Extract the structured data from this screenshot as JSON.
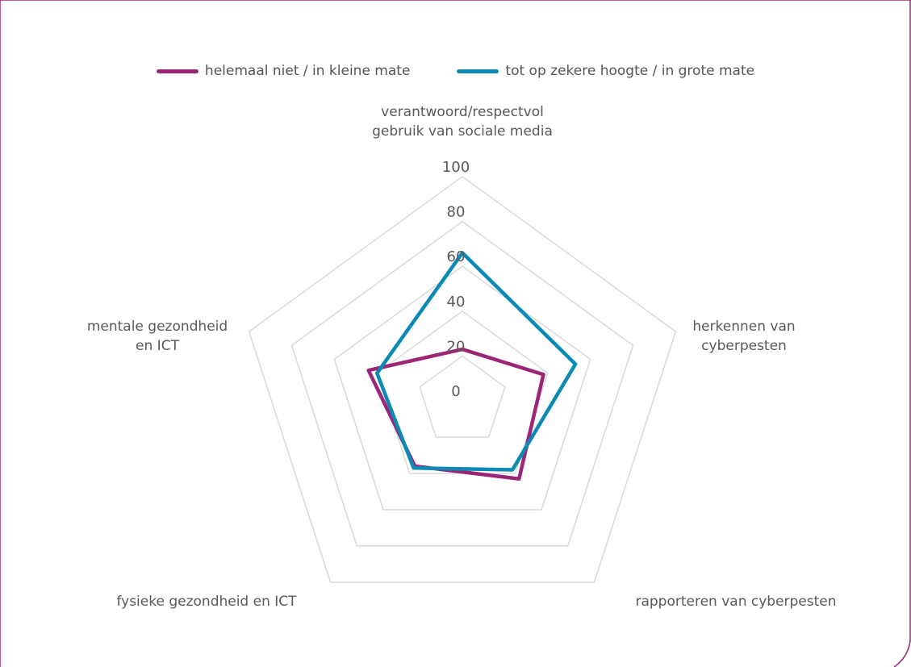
{
  "colors": {
    "frame": "#9b2677",
    "grid": "#d9d9d9",
    "text": "#595959"
  },
  "chart_data": {
    "type": "radar",
    "title": "",
    "categories": [
      [
        "verantwoord/respectvol",
        "gebruik van sociale media"
      ],
      [
        "herkennen van",
        "cyberpesten"
      ],
      [
        "rapporteren van cyberpesten"
      ],
      [
        "fysieke gezondheid en ICT"
      ],
      [
        "mentale gezondheid",
        "en ICT"
      ]
    ],
    "radial_ticks": [
      0,
      20,
      40,
      60,
      80,
      100
    ],
    "rlim": [
      0,
      100
    ],
    "grid": true,
    "legend_position": "top",
    "series": [
      {
        "name": "helemaal niet / in kleine mate",
        "color": "#9b2677",
        "values": [
          23,
          38,
          43,
          36,
          44
        ]
      },
      {
        "name": "tot op zekere hoogte / in grote mate",
        "color": "#0a8ab5",
        "values": [
          66,
          53,
          38,
          37,
          40
        ]
      }
    ]
  }
}
